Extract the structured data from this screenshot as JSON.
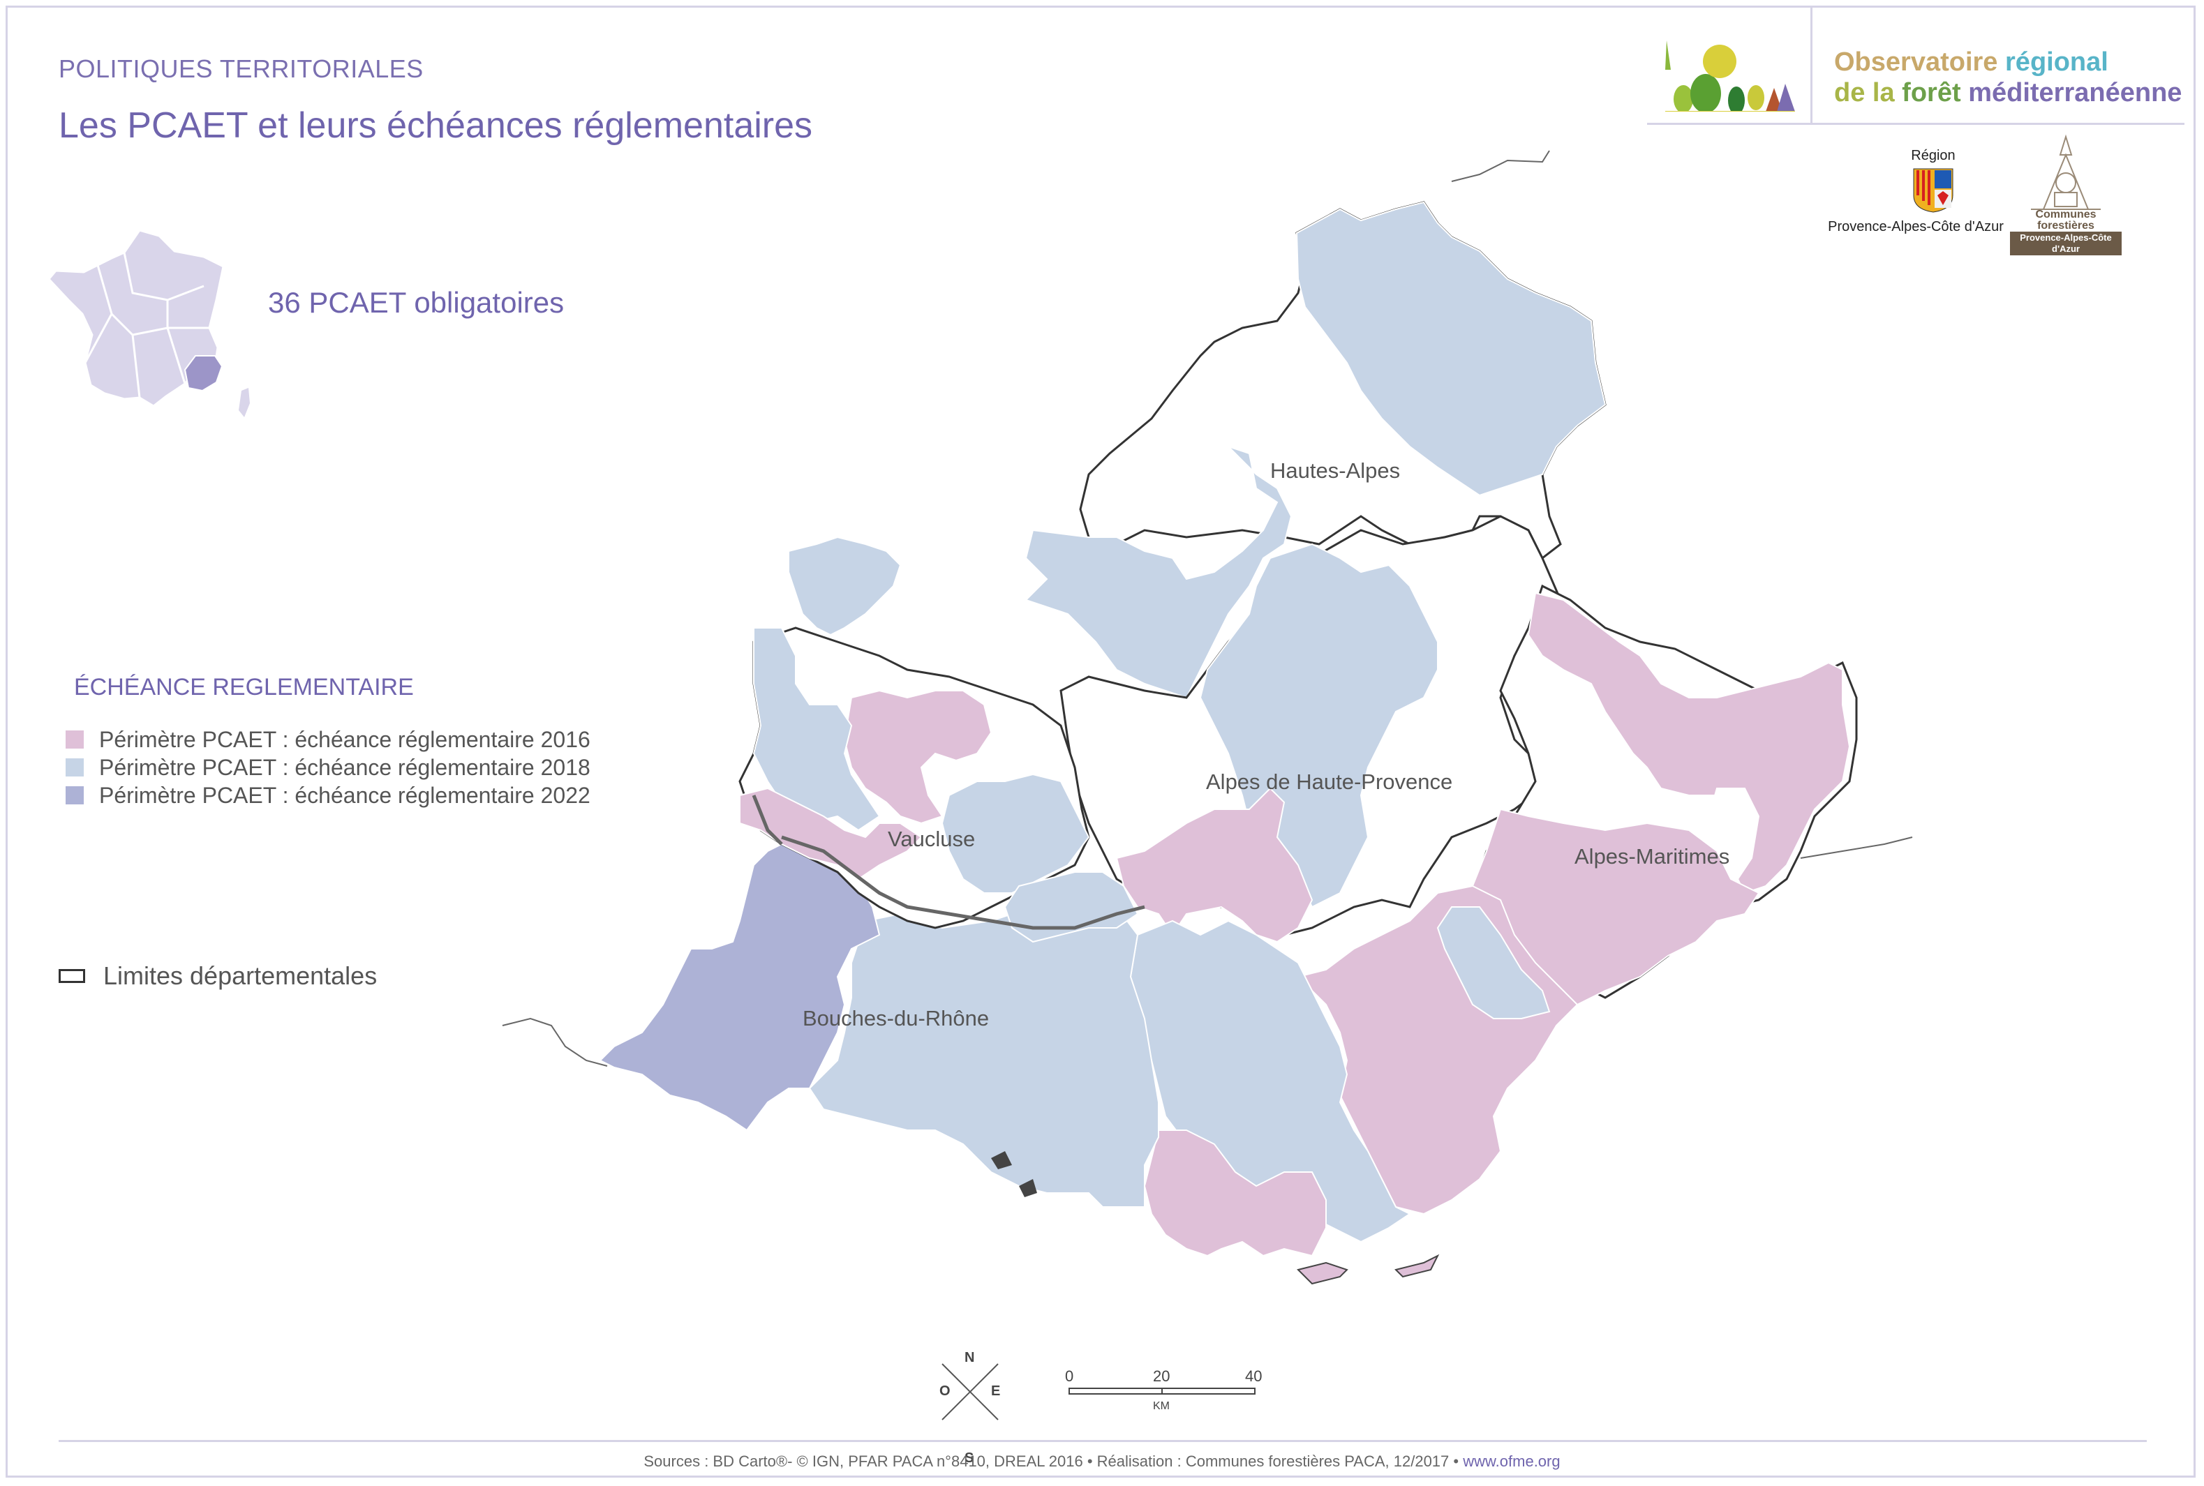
{
  "header": {
    "kicker": "POLITIQUES TERRITORIALES",
    "title": "Les PCAET et leurs échéances réglementaires"
  },
  "summary": {
    "count_text": "36 PCAET obligatoires"
  },
  "logo": {
    "observatoire_line1_a": "Observatoire",
    "observatoire_line1_b": "régional",
    "observatoire_line2_a": "de la",
    "observatoire_line2_b": "forêt",
    "observatoire_line2_c": "méditerranéenne",
    "region_label": "Région",
    "region_name": "Provence-Alpes-Côte d'Azur",
    "communes_label": "Communes forestières",
    "communes_sub": "Provence-Alpes-Côte d'Azur"
  },
  "legend": {
    "title": "ÉCHÉANCE REGLEMENTAIRE",
    "items": [
      {
        "label": "Périmètre PCAET : échéance réglementaire 2016",
        "color": "#dfc0d8"
      },
      {
        "label": "Périmètre PCAET : échéance réglementaire 2018",
        "color": "#c6d4e6"
      },
      {
        "label": "Périmètre PCAET : échéance réglementaire 2022",
        "color": "#adb2d6"
      }
    ],
    "limits_label": "Limites départementales"
  },
  "map": {
    "departments": [
      "Hautes-Alpes",
      "Alpes de Haute-Provence",
      "Vaucluse",
      "Alpes-Maritimes",
      "Bouches-du-Rhône"
    ],
    "colors": {
      "y2016": "#dfc0d8",
      "y2018": "#c6d4e6",
      "y2022": "#adb2d6",
      "border": "#333333",
      "inset_france": "#d9d5ea",
      "inset_paca": "#9c95c8"
    }
  },
  "scale": {
    "ticks": [
      "0",
      "20",
      "40"
    ],
    "unit": "KM"
  },
  "compass": {
    "n": "N",
    "s": "S",
    "e": "E",
    "o": "O"
  },
  "footer": {
    "sources": "Sources : BD Carto®- © IGN, PFAR PACA n°8410,  DREAL 2016 • Réalisation : Communes forestières PACA, 12/2017 • ",
    "url": "www.ofme.org"
  }
}
